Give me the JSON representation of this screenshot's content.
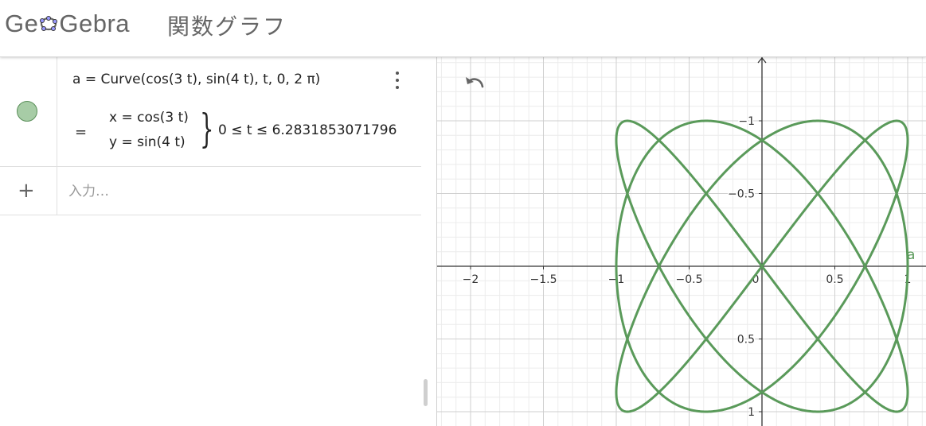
{
  "header": {
    "logo_parts": [
      "Ge",
      "Gebra"
    ],
    "title": "関数グラフ"
  },
  "algebra": {
    "definition": "a  =  Curve(cos(3 t), sin(4 t), t, 0, 2 π)",
    "equals": "=",
    "x_expr": "x = cos(3 t)",
    "y_expr": "y = sin(4 t)",
    "brace": "}",
    "range": "0 ≤ t ≤ 6.2831853071796",
    "input_placeholder": "入力…",
    "icons": {
      "visibility": "visibility-toggle-icon",
      "menu": "more-vert-icon",
      "add": "plus-icon"
    }
  },
  "graphics": {
    "curve_label": "a",
    "x_tick_labels": [
      "−2",
      "−1.5",
      "−1",
      "−0.5",
      "0",
      "0.5",
      "1"
    ],
    "y_tick_labels": [
      "1",
      "0.5",
      "−0.5",
      "−1"
    ],
    "icons": {
      "undo": "undo-icon"
    },
    "colors": {
      "curve": "#5a9a5a",
      "axis": "#333333",
      "grid_major": "#cfcfcf",
      "grid_minor": "#ececec"
    }
  },
  "chart_data": {
    "type": "line",
    "title": "",
    "curve": {
      "name": "a",
      "x_fn": "cos(3 t)",
      "y_fn": "sin(4 t)",
      "t_range": [
        0,
        6.2831853071796
      ]
    },
    "xlim": [
      -2.2,
      1.1
    ],
    "ylim": [
      -1.05,
      1.4
    ],
    "x_ticks": [
      -2,
      -1.5,
      -1,
      -0.5,
      0,
      0.5,
      1
    ],
    "y_ticks": [
      -1,
      -0.5,
      0.5,
      1
    ],
    "grid": true
  }
}
